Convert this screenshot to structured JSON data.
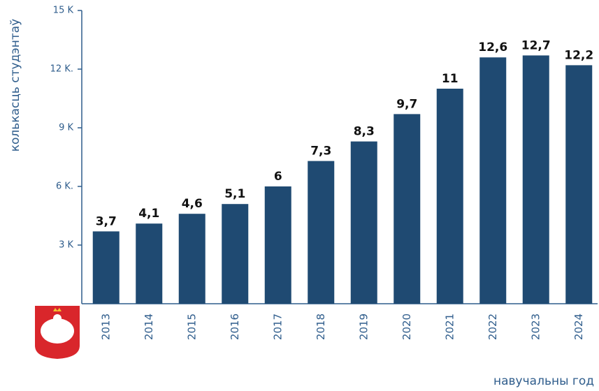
{
  "chart_data": {
    "type": "bar",
    "y_axis_title": "колькасць студэнтаў",
    "x_axis_title": "навучальны год",
    "categories": [
      "2013",
      "2014",
      "2015",
      "2016",
      "2017",
      "2018",
      "2019",
      "2020",
      "2021",
      "2022",
      "2023",
      "2024"
    ],
    "values": [
      3.7,
      4.1,
      4.6,
      5.1,
      6,
      7.3,
      8.3,
      9.7,
      11,
      12.6,
      12.7,
      12.2
    ],
    "value_labels": [
      "3,7",
      "4,1",
      "4,6",
      "5,1",
      "6",
      "7,3",
      "8,3",
      "9,7",
      "11",
      "12,6",
      "12,7",
      "12,2"
    ],
    "color": "#1f4a72",
    "ylim": [
      0,
      15
    ],
    "yticks": [
      {
        "value": 3,
        "label": "3 K"
      },
      {
        "value": 6,
        "label": "6 K."
      },
      {
        "value": 9,
        "label": "9 K"
      },
      {
        "value": 12,
        "label": "12 K."
      },
      {
        "value": 15,
        "label": "15 K"
      }
    ]
  }
}
